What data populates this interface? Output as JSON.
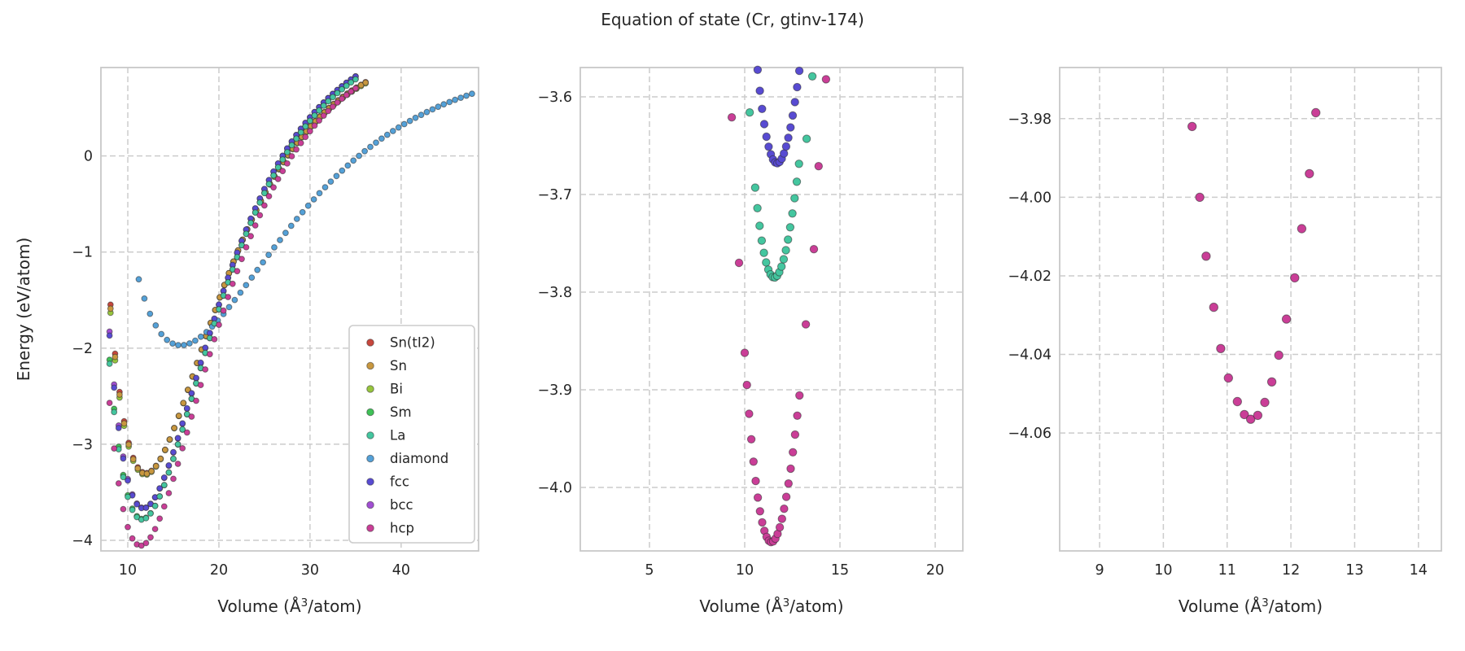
{
  "title": "Equation of state (Cr, gtinv-174)",
  "style": {
    "background": "#ffffff",
    "grid_color": "#cccccc",
    "spine_color": "#c8c8c8",
    "text_color": "#262626",
    "marker_edge": "#2b2b2b",
    "legend_border": "#cccccc",
    "legend_bg": "#ffffff"
  },
  "legend": {
    "entries": [
      {
        "label": "Sn(tI2)",
        "color": "#c7473d"
      },
      {
        "label": "Sn",
        "color": "#c8973f"
      },
      {
        "label": "Bi",
        "color": "#97c53d"
      },
      {
        "label": "Sm",
        "color": "#3fc157"
      },
      {
        "label": "La",
        "color": "#44c69f"
      },
      {
        "label": "diamond",
        "color": "#54a1d8"
      },
      {
        "label": "fcc",
        "color": "#584bd2"
      },
      {
        "label": "bcc",
        "color": "#a14ed2"
      },
      {
        "label": "hcp",
        "color": "#ca3e97"
      }
    ]
  },
  "chart_data": [
    {
      "id": "overview",
      "type": "scatter",
      "xlabel": {
        "pre": "Volume (Å",
        "sup": "3",
        "post": "/atom)"
      },
      "ylabel": "Energy (eV/atom)",
      "xlim": [
        7.05,
        48.5
      ],
      "ylim": [
        -4.11,
        0.92
      ],
      "grid": true,
      "xticks": [
        {
          "v": 10,
          "label": "10"
        },
        {
          "v": 20,
          "label": "20"
        },
        {
          "v": 30,
          "label": "30"
        },
        {
          "v": 40,
          "label": "40"
        }
      ],
      "yticks": [
        {
          "v": 0,
          "label": "0"
        },
        {
          "v": -1,
          "label": "−1"
        },
        {
          "v": -2,
          "label": "−2"
        },
        {
          "v": -3,
          "label": "−3"
        },
        {
          "v": -4,
          "label": "−4"
        }
      ],
      "series": [
        {
          "name": "Sn(tI2)",
          "color": "#c7473d",
          "gen": {
            "start": 8.1,
            "end": 36.1,
            "step": 0.5
          },
          "morse": {
            "E0": -3.301,
            "V0": 11.98,
            "D": 4.5,
            "a": 0.125
          }
        },
        {
          "name": "Bi",
          "color": "#97c53d",
          "gen": {
            "start": 8.1,
            "end": 36.1,
            "step": 0.5
          },
          "morse": {
            "E0": -3.318,
            "V0": 11.92,
            "D": 4.5,
            "a": 0.125
          }
        },
        {
          "name": "Sm",
          "color": "#3fc157",
          "gen": {
            "start": 8.0,
            "end": 35.0,
            "step": 0.5
          },
          "morse": {
            "E0": -3.778,
            "V0": 11.58,
            "D": 5.1,
            "a": 0.126
          }
        },
        {
          "name": "bcc",
          "color": "#a14ed2",
          "gen": {
            "start": 8.0,
            "end": 35.0,
            "step": 0.5
          },
          "morse": {
            "E0": -3.664,
            "V0": 11.73,
            "D": 5.0,
            "a": 0.127
          }
        },
        {
          "name": "Sn",
          "color": "#c8973f",
          "gen": {
            "start": 8.1,
            "end": 36.1,
            "step": 0.5
          },
          "morse": {
            "E0": -3.308,
            "V0": 11.95,
            "D": 4.5,
            "a": 0.125
          }
        },
        {
          "name": "diamond",
          "color": "#54a1d8",
          "gen": {
            "start": 11.2,
            "end": 48.3,
            "step": 0.62
          },
          "morse": {
            "E0": -1.97,
            "V0": 15.8,
            "D": 3.0,
            "a": 0.085
          }
        },
        {
          "name": "fcc",
          "color": "#584bd2",
          "gen": {
            "start": 8.0,
            "end": 35.0,
            "step": 0.5
          },
          "morse": {
            "E0": -3.668,
            "V0": 11.7,
            "D": 5.0,
            "a": 0.127
          }
        },
        {
          "name": "La",
          "color": "#44c69f",
          "gen": {
            "start": 8.0,
            "end": 35.0,
            "step": 0.5
          },
          "morse": {
            "E0": -3.785,
            "V0": 11.55,
            "D": 5.1,
            "a": 0.126
          }
        },
        {
          "name": "hcp",
          "color": "#ca3e97",
          "gen": {
            "start": 8.0,
            "end": 35.0,
            "step": 0.5
          },
          "morse": {
            "E0": -4.056,
            "V0": 11.4,
            "D": 5.3,
            "a": 0.125
          }
        }
      ],
      "show_legend": true
    },
    {
      "id": "zoom-mid",
      "type": "scatter",
      "xlabel": {
        "pre": "Volume (Å",
        "sup": "3",
        "post": "/atom)"
      },
      "ylabel": null,
      "xlim": [
        1.37,
        21.45
      ],
      "ylim": [
        -4.065,
        -3.57
      ],
      "grid": true,
      "xticks": [
        {
          "v": 5,
          "label": "5"
        },
        {
          "v": 10,
          "label": "10"
        },
        {
          "v": 15,
          "label": "15"
        },
        {
          "v": 20,
          "label": "20"
        }
      ],
      "yticks": [
        {
          "v": -3.6,
          "label": "−3.6"
        },
        {
          "v": -3.7,
          "label": "−3.7"
        },
        {
          "v": -3.8,
          "label": "−3.8"
        },
        {
          "v": -3.9,
          "label": "−3.9"
        },
        {
          "v": -4.0,
          "label": "−4.0"
        }
      ],
      "series": [
        {
          "name": "fcc",
          "color": "#584bd2",
          "gen": {
            "start": 10.68,
            "end": 12.99,
            "step": 0.115
          },
          "morse": {
            "E0": -3.668,
            "V0": 11.7,
            "D": 5.0,
            "a": 0.127
          }
        },
        {
          "name": "La",
          "color": "#44c69f",
          "gen": {
            "start": 10.55,
            "end": 12.87,
            "step": 0.115
          },
          "morse": {
            "E0": -3.785,
            "V0": 11.55,
            "D": 5.1,
            "a": 0.126
          },
          "extra": [
            [
              10.26,
              -3.616
            ],
            [
              13.25,
              -3.643
            ],
            [
              13.55,
              -3.579
            ]
          ]
        },
        {
          "name": "hcp",
          "color": "#ca3e97",
          "gen": {
            "start": 10.0,
            "end": 12.89,
            "step": 0.115
          },
          "morse": {
            "E0": -4.056,
            "V0": 11.4,
            "D": 5.3,
            "a": 0.125
          },
          "extra": [
            [
              9.32,
              -3.621
            ],
            [
              9.7,
              -3.77
            ],
            [
              13.21,
              -3.833
            ],
            [
              13.63,
              -3.756
            ],
            [
              13.88,
              -3.671
            ],
            [
              14.27,
              -3.582
            ]
          ]
        }
      ],
      "show_legend": false
    },
    {
      "id": "zoom-hcp",
      "type": "scatter",
      "xlabel": {
        "pre": "Volume (Å",
        "sup": "3",
        "post": "/atom)"
      },
      "ylabel": null,
      "xlim": [
        8.374,
        14.36
      ],
      "ylim": [
        -4.09,
        -3.967
      ],
      "grid": true,
      "xticks": [
        {
          "v": 9,
          "label": "9"
        },
        {
          "v": 10,
          "label": "10"
        },
        {
          "v": 11,
          "label": "11"
        },
        {
          "v": 12,
          "label": "12"
        },
        {
          "v": 13,
          "label": "13"
        },
        {
          "v": 14,
          "label": "14"
        }
      ],
      "yticks": [
        {
          "v": -3.98,
          "label": "−3.98"
        },
        {
          "v": -4.0,
          "label": "−4.00"
        },
        {
          "v": -4.02,
          "label": "−4.02"
        },
        {
          "v": -4.04,
          "label": "−4.04"
        },
        {
          "v": -4.06,
          "label": "−4.06"
        }
      ],
      "series": [
        {
          "name": "hcp",
          "color": "#ca3e97",
          "points": [
            [
              10.45,
              -3.982
            ],
            [
              10.57,
              -4.0
            ],
            [
              10.67,
              -4.015
            ],
            [
              10.79,
              -4.028
            ],
            [
              10.9,
              -4.0385
            ],
            [
              11.02,
              -4.046
            ],
            [
              11.16,
              -4.052
            ],
            [
              11.27,
              -4.0553
            ],
            [
              11.37,
              -4.0565
            ],
            [
              11.48,
              -4.0555
            ],
            [
              11.59,
              -4.0522
            ],
            [
              11.7,
              -4.047
            ],
            [
              11.81,
              -4.0402
            ],
            [
              11.93,
              -4.031
            ],
            [
              12.06,
              -4.0205
            ],
            [
              12.17,
              -4.008
            ],
            [
              12.29,
              -3.994
            ],
            [
              12.39,
              -3.9785
            ]
          ]
        }
      ],
      "show_legend": false
    }
  ]
}
